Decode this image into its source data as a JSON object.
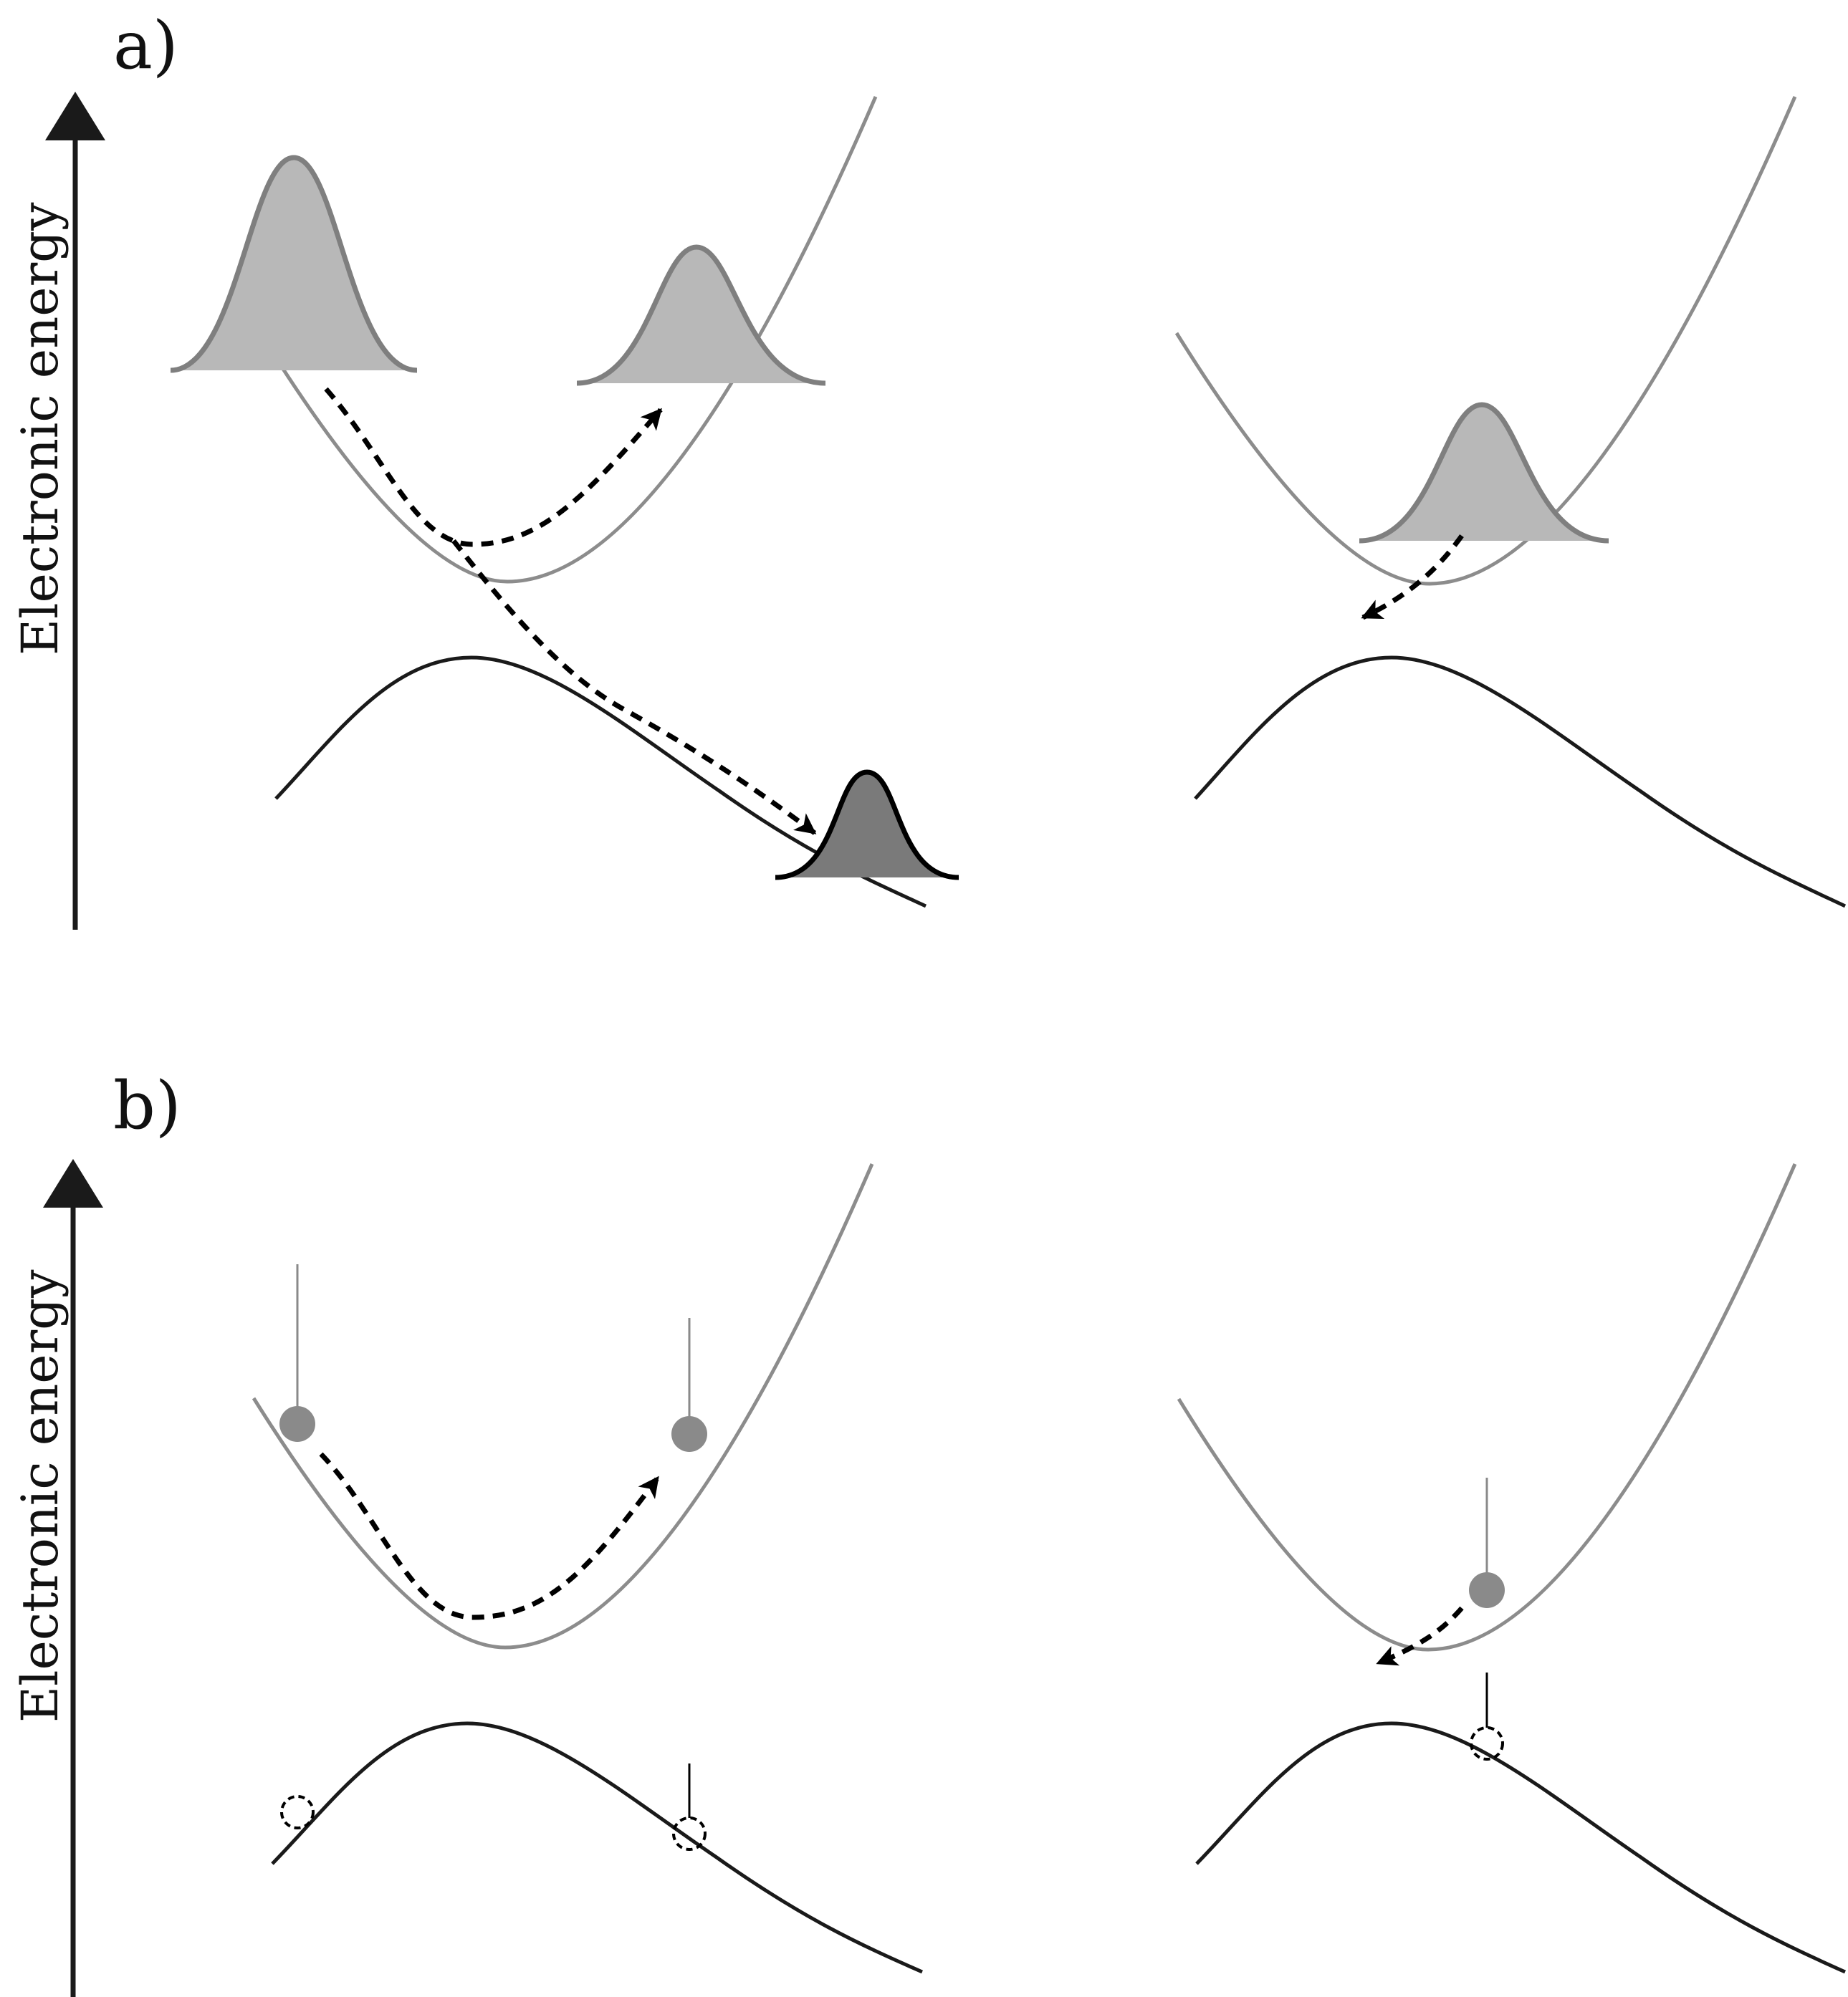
{
  "figure": {
    "panels": [
      {
        "id": "a",
        "label": "a)",
        "y_axis_label": "Electronic energy"
      },
      {
        "id": "b",
        "label": "b)",
        "y_axis_label": "Electronic energy"
      }
    ]
  },
  "colors": {
    "excited_surface": "#8c8c8c",
    "ground_surface": "#1a1a1a",
    "wavepacket_excited_fill": "#b8b8b8",
    "wavepacket_excited_edge": "#7f7f7f",
    "wavepacket_ground_fill": "#7a7a7a",
    "wavepacket_ground_edge": "#000000",
    "trajectory_fill": "#8a8a8a",
    "trajectory_hopped": "#000000",
    "arrow": "#000000"
  }
}
